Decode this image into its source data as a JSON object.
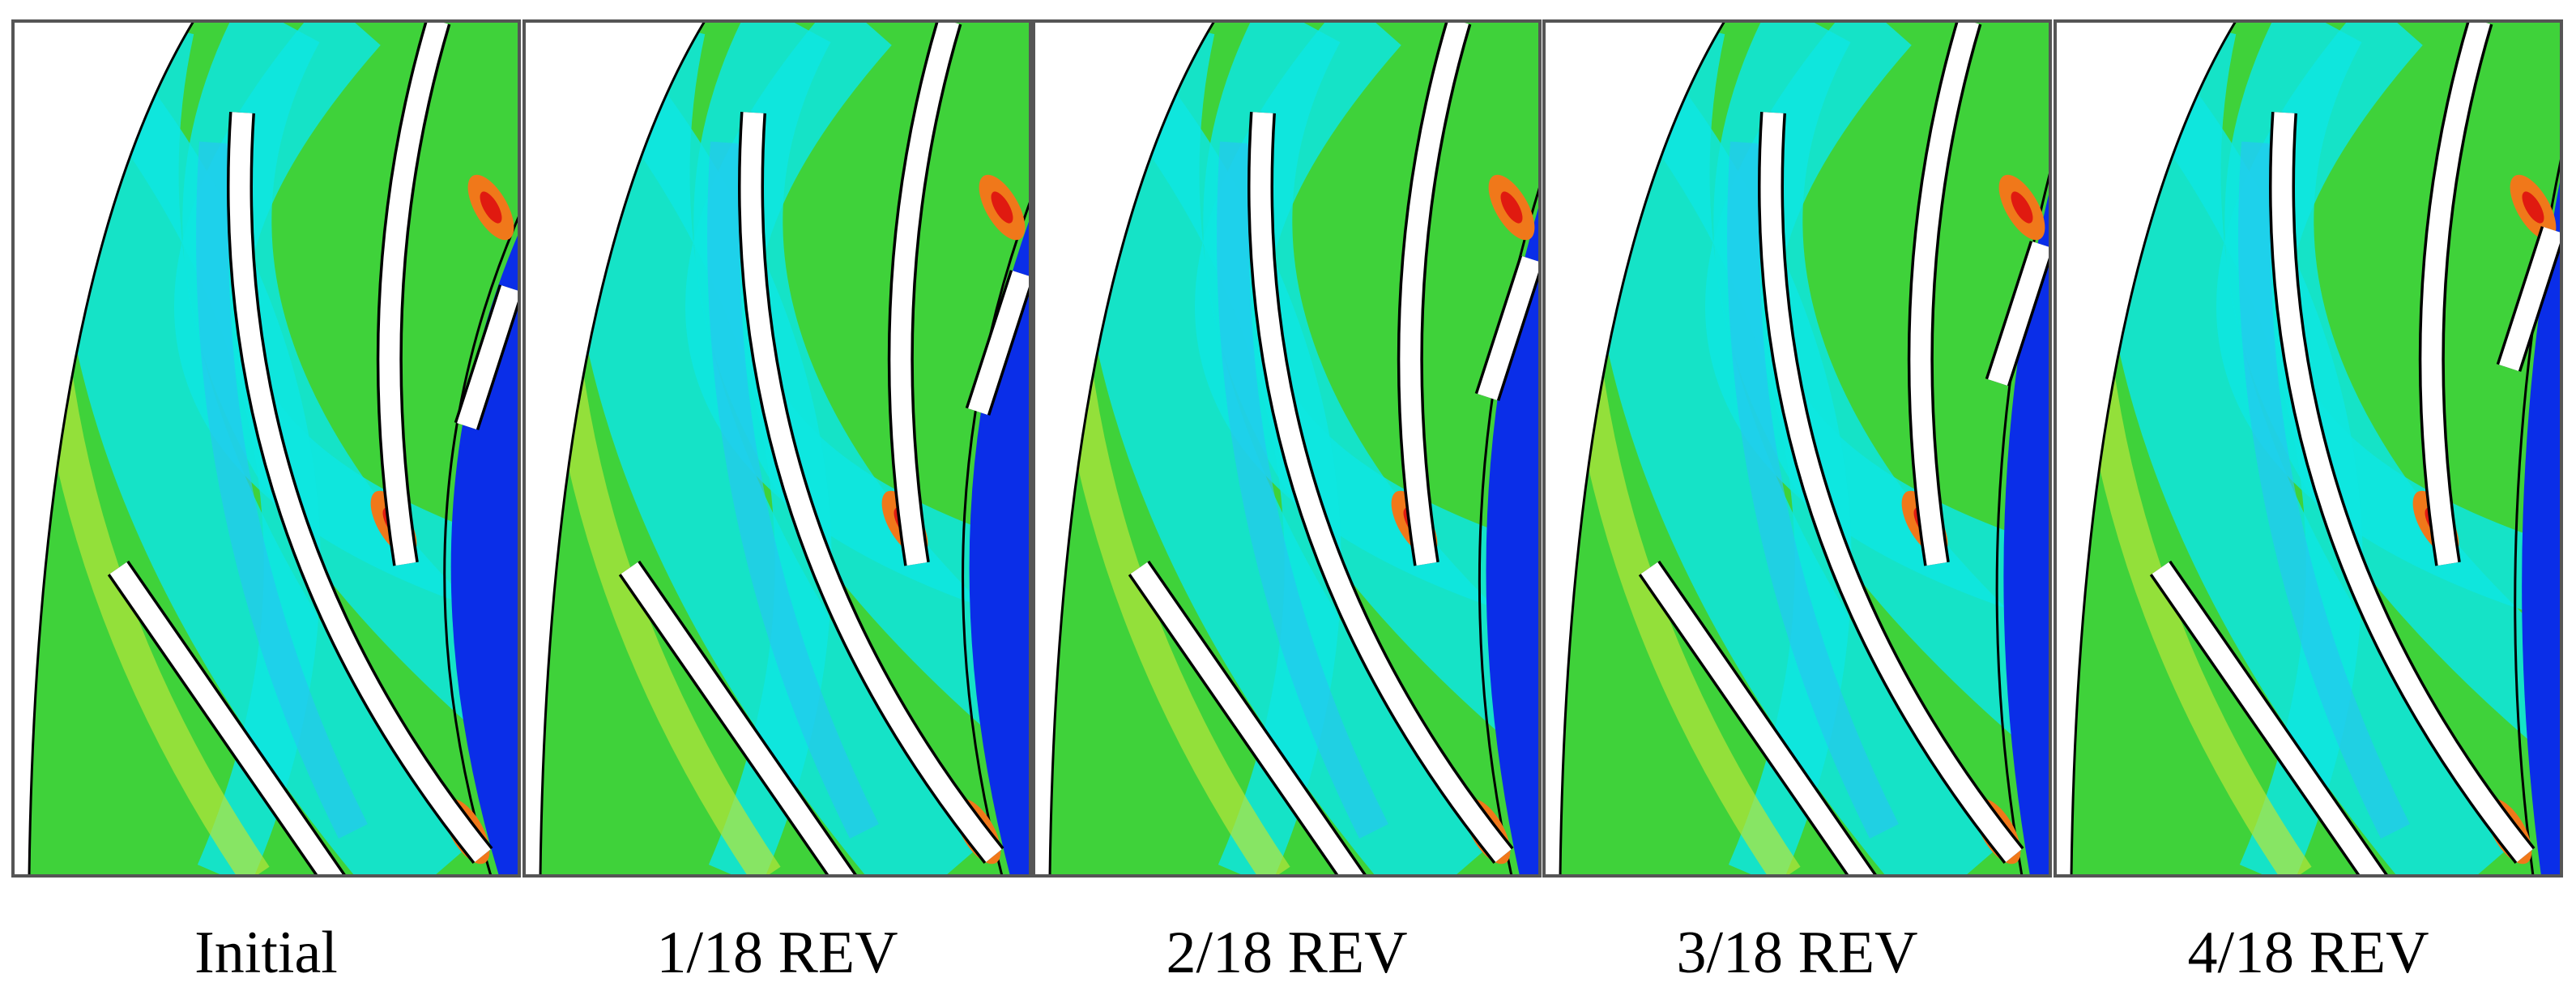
{
  "panels": [
    {
      "label": "Initial"
    },
    {
      "label": "1/18 REV"
    },
    {
      "label": "2/18 REV"
    },
    {
      "label": "3/18 REV"
    },
    {
      "label": "4/18 REV"
    }
  ]
}
